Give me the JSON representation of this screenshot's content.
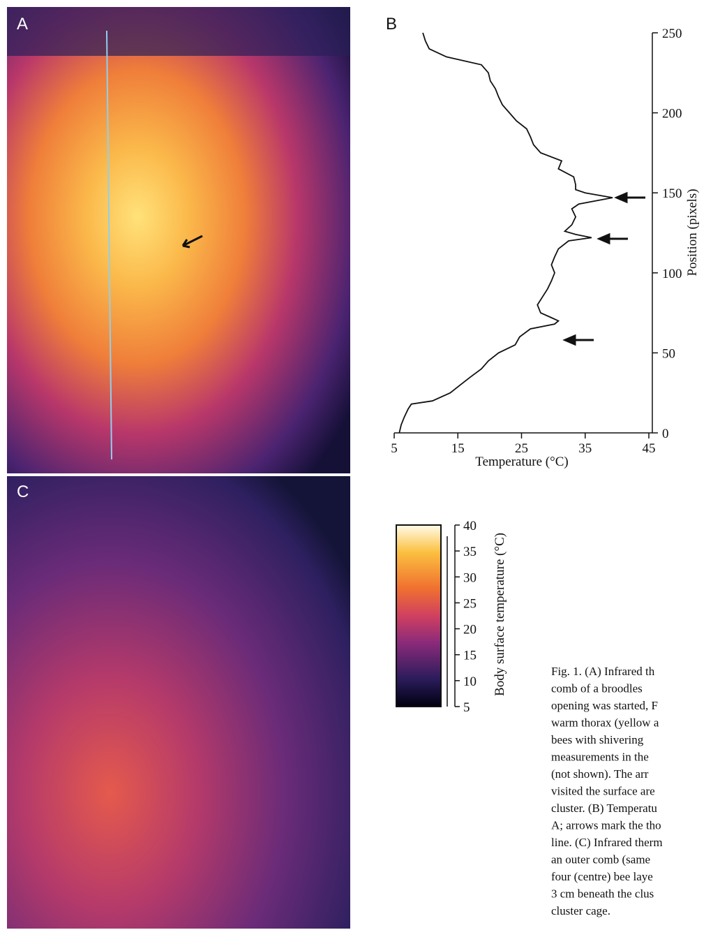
{
  "panel_labels": [
    "A",
    "B",
    "C"
  ],
  "chart_data": {
    "type": "line",
    "panel": "B",
    "x_label": "Temperature (°C)",
    "y_label": "Position (pixels)",
    "x": [
      5.8,
      6.1,
      6.6,
      7.2,
      7.7,
      11,
      13.8,
      15.4,
      17,
      18.7,
      19.8,
      21.4,
      24,
      24.7,
      26.4,
      30.2,
      30.8,
      29.7,
      28,
      27.5,
      28.3,
      29.1,
      29.7,
      30.2,
      29.7,
      30.2,
      30.8,
      32.4,
      36,
      33.5,
      31.8,
      32.9,
      33.5,
      32.9,
      34,
      39.3,
      35,
      33.5,
      33.5,
      33.2,
      30.8,
      31.3,
      28,
      26.9,
      26.4,
      25.8,
      24.2,
      23.1,
      22,
      21.4,
      20.9,
      20.1,
      19.8,
      18.7,
      13.2,
      10.5,
      9.9,
      9.5
    ],
    "values": [
      0,
      5,
      10,
      15,
      18,
      20,
      25,
      30,
      35,
      40,
      45,
      50,
      55,
      60,
      65,
      68,
      70,
      72,
      75,
      80,
      85,
      90,
      95,
      100,
      105,
      110,
      115,
      120,
      122,
      124,
      126,
      130,
      135,
      140,
      143,
      147,
      150,
      152,
      155,
      160,
      165,
      170,
      175,
      180,
      185,
      190,
      195,
      200,
      205,
      210,
      215,
      220,
      225,
      230,
      235,
      240,
      245,
      250
    ],
    "color": "#111111",
    "xlim": [
      5,
      45
    ],
    "xticks": [
      5,
      15,
      25,
      35,
      45
    ],
    "ylim": [
      0,
      250
    ],
    "yticks": [
      0,
      50,
      100,
      150,
      200,
      250
    ]
  },
  "colorbar": {
    "label": "Body surface temperature (°C)",
    "lim": [
      5,
      40
    ],
    "ticks": [
      5,
      10,
      15,
      20,
      25,
      30,
      35,
      40
    ]
  },
  "caption": [
    "Fig. 1. (A) Infrared th",
    "comb of a broodles",
    "opening was started, F",
    "warm thorax (yellow a",
    "bees with shivering",
    "measurements in the",
    "(not shown). The arr",
    "visited the surface are",
    "cluster. (B) Temperatu",
    "A; arrows mark the tho",
    "line. (C) Infrared therm",
    "an outer comb (same",
    "four (centre) bee laye",
    "3 cm beneath the clus",
    "cluster cage."
  ]
}
